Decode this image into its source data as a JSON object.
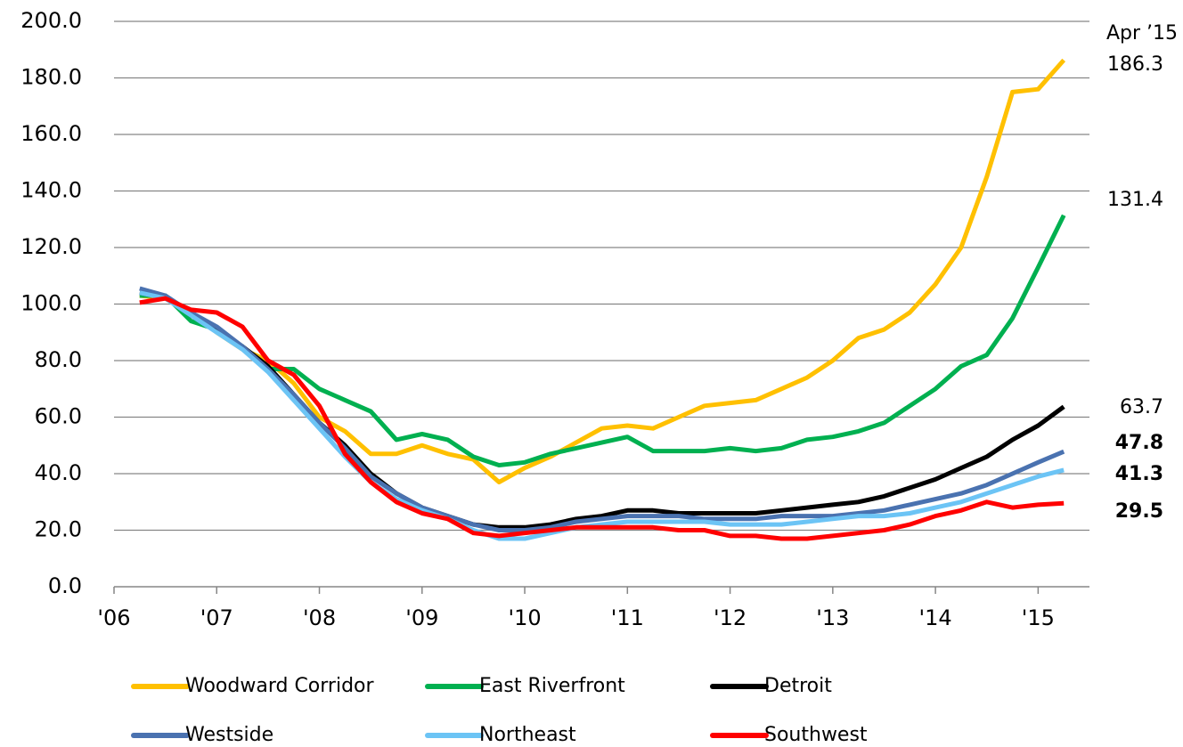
{
  "chart_data": {
    "type": "line",
    "annotation": "Apr ’15",
    "xlim": [
      2006,
      2015.5
    ],
    "xticks": [
      {
        "value": 2006,
        "label": "'06"
      },
      {
        "value": 2007,
        "label": "'07"
      },
      {
        "value": 2008,
        "label": "'08"
      },
      {
        "value": 2009,
        "label": "'09"
      },
      {
        "value": 2010,
        "label": "'10"
      },
      {
        "value": 2011,
        "label": "'11"
      },
      {
        "value": 2012,
        "label": "'12"
      },
      {
        "value": 2013,
        "label": "'13"
      },
      {
        "value": 2014,
        "label": "'14"
      },
      {
        "value": 2015,
        "label": "'15"
      }
    ],
    "ylim": [
      0,
      200
    ],
    "yticks": [
      {
        "value": 0,
        "label": "0.0"
      },
      {
        "value": 20,
        "label": "20.0"
      },
      {
        "value": 40,
        "label": "40.0"
      },
      {
        "value": 60,
        "label": "60.0"
      },
      {
        "value": 80,
        "label": "80.0"
      },
      {
        "value": 100,
        "label": "100.0"
      },
      {
        "value": 120,
        "label": "120.0"
      },
      {
        "value": 140,
        "label": "140.0"
      },
      {
        "value": 160,
        "label": "160.0"
      },
      {
        "value": 180,
        "label": "180.0"
      },
      {
        "value": 200,
        "label": "200.0"
      }
    ],
    "grid": true,
    "legend": "bottom",
    "x": [
      2006.25,
      2006.5,
      2006.75,
      2007,
      2007.25,
      2007.5,
      2007.75,
      2008,
      2008.25,
      2008.5,
      2008.75,
      2009,
      2009.25,
      2009.5,
      2009.75,
      2010,
      2010.25,
      2010.5,
      2010.75,
      2011,
      2011.25,
      2011.5,
      2011.75,
      2012,
      2012.25,
      2012.5,
      2012.75,
      2013,
      2013.25,
      2013.5,
      2013.75,
      2014,
      2014.25,
      2014.5,
      2014.75,
      2015,
      2015.25
    ],
    "series": [
      {
        "name": "Woodward Corridor",
        "color": "#ffc000",
        "values": [
          103,
          102,
          97,
          90,
          84,
          80,
          72,
          60,
          55,
          47,
          47,
          50,
          47,
          45,
          37,
          42,
          46,
          51,
          56,
          57,
          56,
          60,
          64,
          65,
          66,
          70,
          74,
          80,
          88,
          91,
          97,
          107,
          120,
          145,
          175,
          176,
          186.3
        ]
      },
      {
        "name": "East Riverfront",
        "color": "#00b050",
        "values": [
          103,
          103,
          94,
          91,
          85,
          77,
          77,
          70,
          66,
          62,
          52,
          54,
          52,
          46,
          43,
          44,
          47,
          49,
          51,
          53,
          48,
          48,
          48,
          49,
          48,
          49,
          52,
          53,
          55,
          58,
          64,
          70,
          78,
          82,
          95,
          113,
          131.4
        ]
      },
      {
        "name": "Detroit",
        "color": "#000000",
        "values": [
          104,
          102,
          97,
          91,
          85,
          78,
          68,
          58,
          50,
          40,
          33,
          28,
          25,
          22,
          21,
          21,
          22,
          24,
          25,
          27,
          27,
          26,
          26,
          26,
          26,
          27,
          28,
          29,
          30,
          32,
          35,
          38,
          42,
          46,
          52,
          57,
          63.7
        ]
      },
      {
        "name": "Westside",
        "color": "#4a72b0",
        "values": [
          105.5,
          103,
          97,
          92,
          85,
          77,
          68,
          58,
          49,
          39,
          33,
          28,
          25,
          22,
          20,
          20,
          21,
          23,
          24,
          25,
          25,
          25,
          24,
          24,
          24,
          25,
          25,
          25,
          26,
          27,
          29,
          31,
          33,
          36,
          40,
          44,
          47.8
        ]
      },
      {
        "name": "Northeast",
        "color": "#6cc4f5",
        "values": [
          104,
          102,
          96,
          90,
          84,
          76,
          66,
          56,
          46,
          37,
          31,
          27,
          24,
          20,
          17,
          17,
          19,
          21,
          22,
          23,
          23,
          23,
          23,
          22,
          22,
          22,
          23,
          24,
          25,
          25,
          26,
          28,
          30,
          33,
          36,
          39,
          41.3
        ]
      },
      {
        "name": "Southwest",
        "color": "#ff0000",
        "values": [
          100.5,
          102,
          98,
          97,
          92,
          80,
          75,
          64,
          47,
          37,
          30,
          26,
          24,
          19,
          18,
          19,
          20,
          21,
          21,
          21,
          21,
          20,
          20,
          18,
          18,
          17,
          17,
          18,
          19,
          20,
          22,
          25,
          27,
          30,
          28,
          29,
          29.5
        ]
      }
    ]
  }
}
